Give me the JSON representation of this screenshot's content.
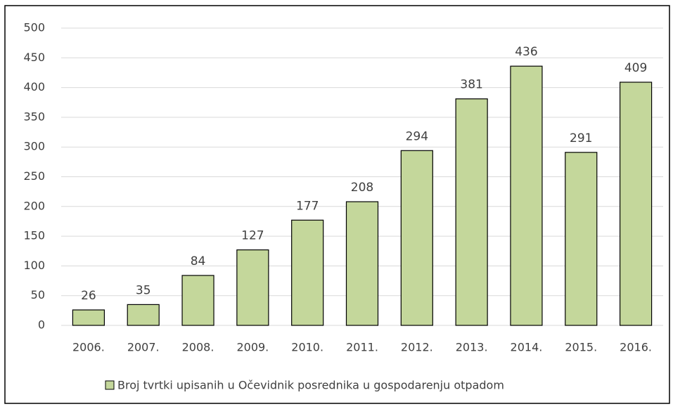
{
  "chart_data": {
    "type": "bar",
    "categories": [
      "2006.",
      "2007.",
      "2008.",
      "2009.",
      "2010.",
      "2011.",
      "2012.",
      "2013.",
      "2014.",
      "2015.",
      "2016."
    ],
    "series": [
      {
        "name": "Broj tvrtki upisanih u Očevidnik posrednika u gospodarenju otpadom",
        "color": "#c4d79b",
        "values": [
          26,
          35,
          84,
          127,
          177,
          208,
          294,
          381,
          436,
          291,
          409
        ]
      }
    ],
    "ylim": [
      0,
      500
    ],
    "yticks": [
      0,
      50,
      100,
      150,
      200,
      250,
      300,
      350,
      400,
      450,
      500
    ],
    "grid": true,
    "legend": "bottom"
  }
}
